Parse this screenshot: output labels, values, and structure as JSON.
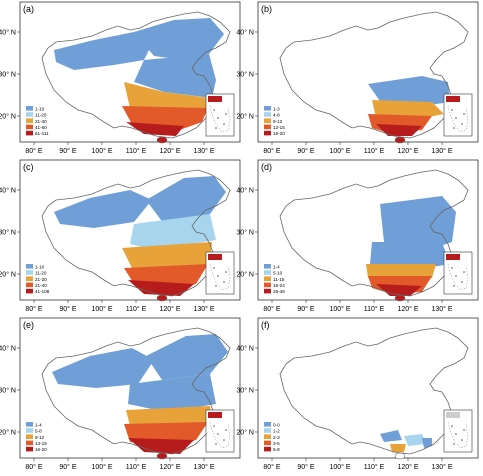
{
  "panels": [
    {
      "label": "(a)",
      "legend": [
        "1-10",
        "11-20",
        "21-40",
        "41-60",
        "61-111"
      ]
    },
    {
      "label": "(b)",
      "legend": [
        "1-3",
        "4-8",
        "9-12",
        "13-15",
        "16-20"
      ]
    },
    {
      "label": "(c)",
      "legend": [
        "1-10",
        "11-20",
        "21-20",
        "21-40",
        "41-108"
      ]
    },
    {
      "label": "(d)",
      "legend": [
        "1-4",
        "5-10",
        "11-15",
        "16-24",
        "25-48"
      ]
    },
    {
      "label": "(e)",
      "legend": [
        "1-4",
        "5-8",
        "9-12",
        "13-15",
        "16-20"
      ]
    },
    {
      "label": "(f)",
      "legend": [
        "0-0",
        "1-2",
        "2-3",
        "3-5",
        "5-8"
      ]
    }
  ],
  "axes": {
    "x_ticks": [
      "80° E",
      "90° E",
      "100° E",
      "110° E",
      "120° E",
      "130° E"
    ],
    "y_ticks": [
      "40° N",
      "30° N",
      "20° N"
    ]
  },
  "colors": {
    "class1": "#6f9fd6",
    "class2": "#a7d5ee",
    "class3": "#e7a23a",
    "class4": "#e35a2a",
    "class5": "#b71c1c",
    "outline": "#666666"
  }
}
